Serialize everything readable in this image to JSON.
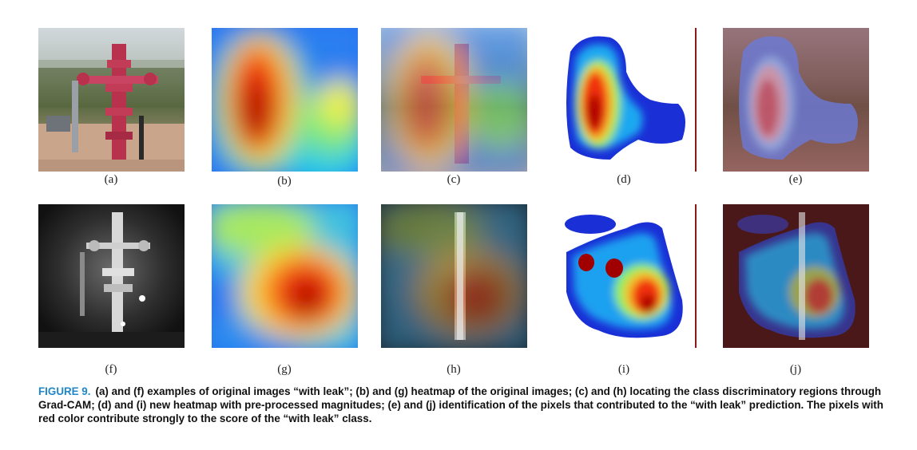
{
  "panel_labels": [
    "(a)",
    "(b)",
    "(c)",
    "(d)",
    "(e)",
    "(f)",
    "(g)",
    "(h)",
    "(i)",
    "(j)"
  ],
  "caption": {
    "figure_label": "FIGURE 9.",
    "text": "(a) and (f) examples of original images “with leak”; (b) and (g) heatmap of the original images; (c) and (h) locating the class discriminatory regions through Grad-CAM; (d) and (i) new heatmap with pre-processed magnitudes; (e) and (j) identification of the pixels that contributed to the “with leak” prediction. The pixels with red color contribute strongly to the score of the “with leak” class."
  },
  "colors": {
    "caption_label": "#1f86c7",
    "heat_low": "#1a2fd6",
    "heat_high": "#b30000"
  }
}
